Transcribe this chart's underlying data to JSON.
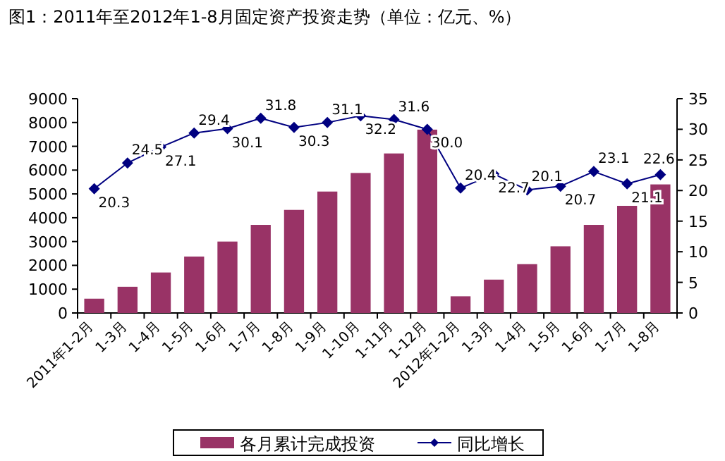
{
  "chart_data": {
    "type": "bar",
    "title": "图1：2011年至2012年1-8月固定资产投资走势（单位：亿元、%）",
    "categories": [
      "2011年1-2月",
      "1-3月",
      "1-4月",
      "1-5月",
      "1-6月",
      "1-7月",
      "1-8月",
      "1-9月",
      "1-10月",
      "1-11月",
      "1-12月",
      "2012年1-2月",
      "1-3月",
      "1-4月",
      "1-5月",
      "1-6月",
      "1-7月",
      "1-8月"
    ],
    "series": [
      {
        "name": "各月累计完成投资",
        "color": "#993366",
        "values": [
          600,
          1100,
          1700,
          2370,
          3000,
          3700,
          4330,
          5100,
          5880,
          6700,
          7700,
          700,
          1400,
          2050,
          2800,
          3700,
          4500,
          5400
        ]
      },
      {
        "name": "同比增长",
        "type": "line",
        "axis": "y2",
        "color": "#000080",
        "marker": "diamond",
        "values": [
          20.3,
          24.5,
          27.1,
          29.4,
          30.1,
          31.8,
          30.3,
          31.1,
          32.2,
          31.6,
          30.0,
          20.4,
          22.7,
          20.1,
          20.7,
          23.1,
          21.1,
          22.6
        ],
        "value_labels": [
          "20.3",
          "24.5",
          "27.1",
          "29.4",
          "30.1",
          "31.8",
          "30.3",
          "31.1",
          "32.2",
          "31.6",
          "30.0",
          "20.4",
          "22.7",
          "20.1",
          "20.7",
          "23.1",
          "21.1",
          "22.6"
        ]
      }
    ],
    "ylim": [
      0,
      9000
    ],
    "yticks": [
      0,
      1000,
      2000,
      3000,
      4000,
      5000,
      6000,
      7000,
      8000,
      9000
    ],
    "y2lim": [
      0,
      35
    ],
    "y2ticks": [
      0,
      5,
      10,
      15,
      20,
      25,
      30,
      35
    ],
    "legend": "bottom",
    "grid": false
  }
}
